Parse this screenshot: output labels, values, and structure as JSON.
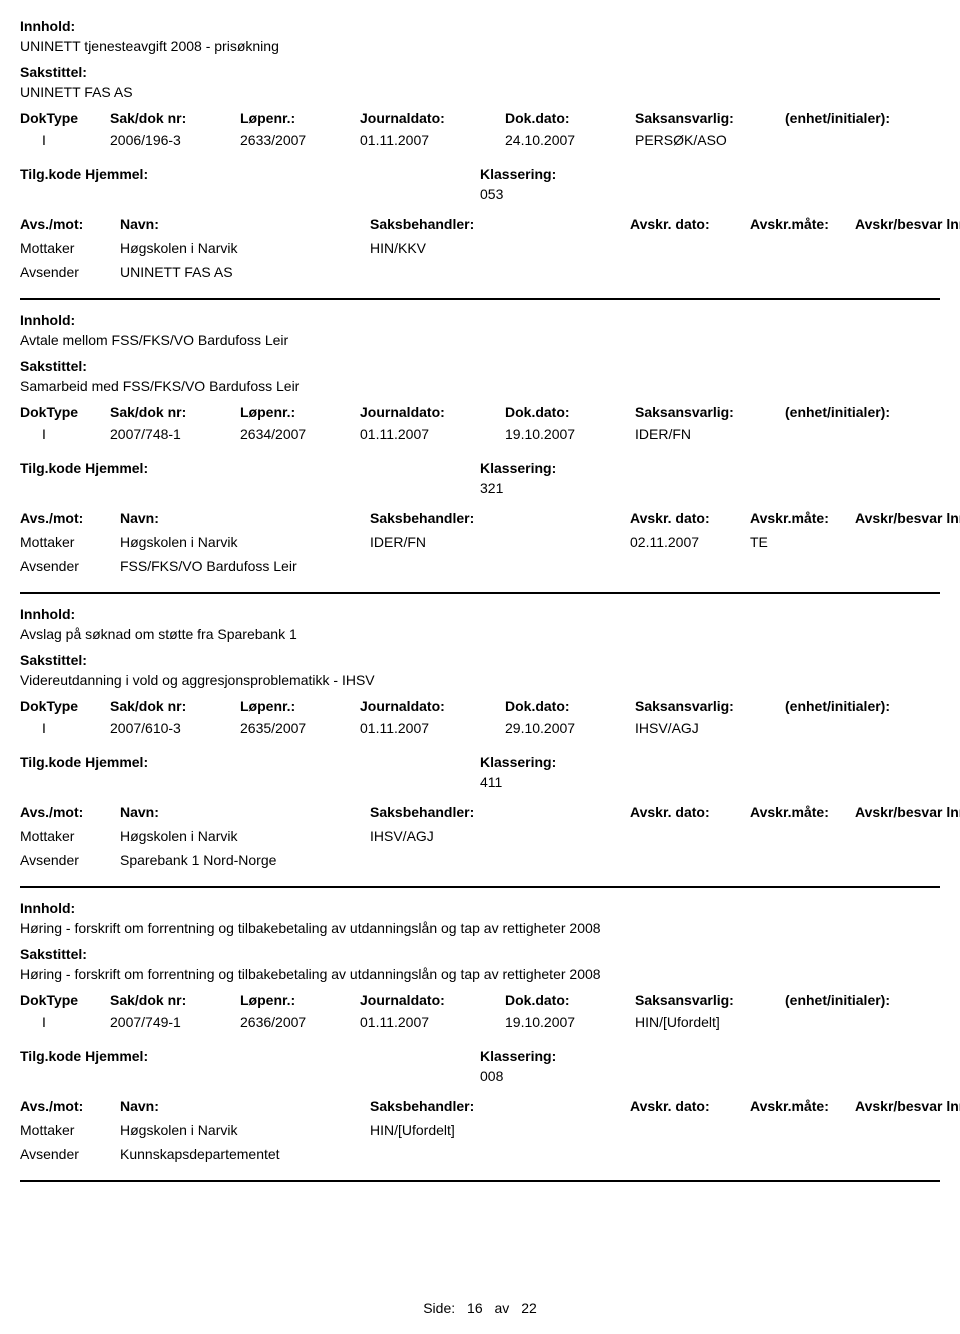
{
  "labels": {
    "innhold": "Innhold:",
    "sakstittel": "Sakstittel:",
    "doktype": "DokType",
    "sakdok": "Sak/dok nr:",
    "lopenr": "Løpenr.:",
    "journaldato": "Journaldato:",
    "dokdato": "Dok.dato:",
    "saksansvarlig": "Saksansvarlig:",
    "enhet": "(enhet/initialer):",
    "tilgkode": "Tilg.kode Hjemmel:",
    "klassering": "Klassering:",
    "avsmot": "Avs./mot:",
    "navn": "Navn:",
    "saksbehandler": "Saksbehandler:",
    "avskrdato": "Avskr. dato:",
    "avskrmatelbl": "Avskr.måte:",
    "avskrbesvar": "Avskr/besvar lnr.",
    "mottaker": "Mottaker",
    "avsender": "Avsender",
    "side": "Side:",
    "av": "av"
  },
  "footer": {
    "page": "16",
    "total": "22"
  },
  "records": [
    {
      "innhold": "UNINETT tjenesteavgift 2008 - prisøkning",
      "sakstittel": "UNINETT FAS AS",
      "doktype": "I",
      "sakdok": "2006/196-3",
      "lopenr": "2633/2007",
      "journaldato": "01.11.2007",
      "dokdato": "24.10.2007",
      "saksansvarlig": "PERSØK/ASO",
      "klassering": "053",
      "mottaker_navn": "Høgskolen i Narvik",
      "saksbehandler": "HIN/KKV",
      "avskrdato": "",
      "avskrmate": "",
      "avsender_navn": "UNINETT FAS AS"
    },
    {
      "innhold": "Avtale mellom FSS/FKS/VO Bardufoss Leir",
      "sakstittel": "Samarbeid med FSS/FKS/VO Bardufoss Leir",
      "doktype": "I",
      "sakdok": "2007/748-1",
      "lopenr": "2634/2007",
      "journaldato": "01.11.2007",
      "dokdato": "19.10.2007",
      "saksansvarlig": "IDER/FN",
      "klassering": "321",
      "mottaker_navn": "Høgskolen i Narvik",
      "saksbehandler": "IDER/FN",
      "avskrdato": "02.11.2007",
      "avskrmate": "TE",
      "avsender_navn": "FSS/FKS/VO Bardufoss Leir"
    },
    {
      "innhold": "Avslag på søknad om støtte fra Sparebank 1",
      "sakstittel": "Videreutdanning i vold og aggresjonsproblematikk - IHSV",
      "doktype": "I",
      "sakdok": "2007/610-3",
      "lopenr": "2635/2007",
      "journaldato": "01.11.2007",
      "dokdato": "29.10.2007",
      "saksansvarlig": "IHSV/AGJ",
      "klassering": "411",
      "mottaker_navn": "Høgskolen i Narvik",
      "saksbehandler": "IHSV/AGJ",
      "avskrdato": "",
      "avskrmate": "",
      "avsender_navn": "Sparebank 1 Nord-Norge"
    },
    {
      "innhold": "Høring - forskrift om forrentning og tilbakebetaling av utdanningslån og tap av rettigheter 2008",
      "sakstittel": "Høring - forskrift om forrentning og tilbakebetaling av utdanningslån og tap av rettigheter 2008",
      "doktype": "I",
      "sakdok": "2007/749-1",
      "lopenr": "2636/2007",
      "journaldato": "01.11.2007",
      "dokdato": "19.10.2007",
      "saksansvarlig": "HIN/[Ufordelt]",
      "klassering": "008",
      "mottaker_navn": "Høgskolen i Narvik",
      "saksbehandler": "HIN/[Ufordelt]",
      "avskrdato": "",
      "avskrmate": "",
      "avsender_navn": "Kunnskapsdepartementet"
    }
  ]
}
